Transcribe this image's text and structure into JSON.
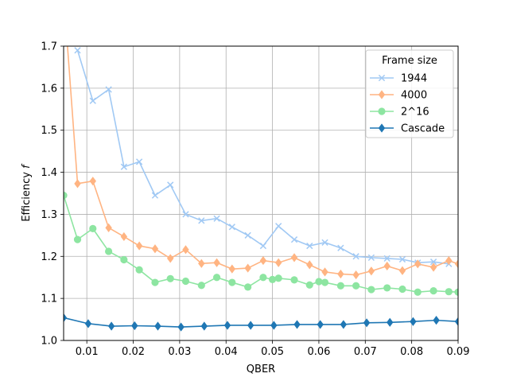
{
  "chart_data": {
    "type": "line",
    "title": "",
    "xlabel": "QBER",
    "ylabel_main": "Efficiency ",
    "ylabel_var": "f",
    "xlim": [
      0.005,
      0.09
    ],
    "ylim": [
      1.0,
      1.7
    ],
    "xticks": [
      0.01,
      0.02,
      0.03,
      0.04,
      0.05,
      0.06,
      0.07,
      0.08,
      0.09
    ],
    "xtick_labels": [
      "0.01",
      "0.02",
      "0.03",
      "0.04",
      "0.05",
      "0.06",
      "0.07",
      "0.08",
      "0.09"
    ],
    "yticks": [
      1.0,
      1.1,
      1.2,
      1.3,
      1.4,
      1.5,
      1.6,
      1.7
    ],
    "ytick_labels": [
      "1.0",
      "1.1",
      "1.2",
      "1.3",
      "1.4",
      "1.5",
      "1.6",
      "1.7"
    ],
    "grid": true,
    "legend": {
      "title": "Frame size",
      "placement": "top-right"
    },
    "series": [
      {
        "name": "1944",
        "color": "#a1c9f4",
        "marker": "x",
        "x": [
          0.008,
          0.0113,
          0.0147,
          0.018,
          0.0213,
          0.0247,
          0.028,
          0.0313,
          0.0347,
          0.038,
          0.0413,
          0.0447,
          0.048,
          0.0513,
          0.0547,
          0.058,
          0.0613,
          0.0647,
          0.068,
          0.0713,
          0.0747,
          0.078,
          0.0813,
          0.0847,
          0.088
        ],
        "y": [
          1.69,
          1.57,
          1.597,
          1.413,
          1.425,
          1.345,
          1.37,
          1.3,
          1.285,
          1.29,
          1.27,
          1.25,
          1.225,
          1.272,
          1.24,
          1.225,
          1.233,
          1.22,
          1.2,
          1.197,
          1.195,
          1.193,
          1.185,
          1.187,
          1.182
        ]
      },
      {
        "name": "4000",
        "color": "#ffb482",
        "marker": "diamond",
        "x": [
          0.0055,
          0.008,
          0.0113,
          0.0147,
          0.018,
          0.0213,
          0.0247,
          0.028,
          0.0313,
          0.0347,
          0.038,
          0.0413,
          0.0447,
          0.048,
          0.0513,
          0.0547,
          0.058,
          0.0613,
          0.0647,
          0.068,
          0.0713,
          0.0747,
          0.078,
          0.0813,
          0.0847,
          0.088,
          0.09
        ],
        "y": [
          1.75,
          1.373,
          1.379,
          1.268,
          1.247,
          1.225,
          1.218,
          1.195,
          1.216,
          1.183,
          1.185,
          1.17,
          1.172,
          1.19,
          1.185,
          1.197,
          1.18,
          1.163,
          1.158,
          1.156,
          1.165,
          1.177,
          1.166,
          1.182,
          1.174,
          1.19,
          1.182
        ]
      },
      {
        "name": "2^16",
        "color": "#8de5a1",
        "marker": "circle",
        "x": [
          0.005,
          0.008,
          0.0113,
          0.0147,
          0.018,
          0.0213,
          0.0247,
          0.028,
          0.0313,
          0.0347,
          0.038,
          0.0413,
          0.0447,
          0.048,
          0.05,
          0.0513,
          0.0547,
          0.058,
          0.06,
          0.0613,
          0.0647,
          0.068,
          0.0713,
          0.0747,
          0.078,
          0.0813,
          0.0847,
          0.088,
          0.09
        ],
        "y": [
          1.345,
          1.24,
          1.266,
          1.212,
          1.192,
          1.168,
          1.138,
          1.147,
          1.141,
          1.131,
          1.15,
          1.138,
          1.127,
          1.15,
          1.145,
          1.148,
          1.144,
          1.132,
          1.14,
          1.138,
          1.13,
          1.13,
          1.121,
          1.125,
          1.122,
          1.115,
          1.118,
          1.116,
          1.115
        ]
      },
      {
        "name": "Cascade",
        "color": "#1f77b4",
        "marker": "diamond",
        "x": [
          0.005,
          0.0103,
          0.0153,
          0.0203,
          0.0253,
          0.0303,
          0.0353,
          0.0403,
          0.0453,
          0.0503,
          0.0553,
          0.0603,
          0.0653,
          0.0703,
          0.0753,
          0.0803,
          0.0853,
          0.09
        ],
        "y": [
          1.054,
          1.04,
          1.034,
          1.035,
          1.034,
          1.032,
          1.034,
          1.036,
          1.036,
          1.036,
          1.038,
          1.038,
          1.038,
          1.042,
          1.043,
          1.045,
          1.048,
          1.045
        ]
      }
    ]
  }
}
